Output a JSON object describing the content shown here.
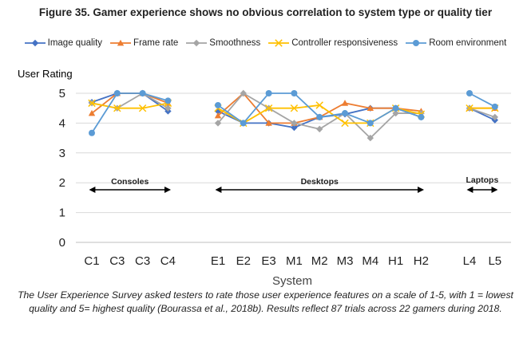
{
  "chart_data": {
    "type": "line",
    "title": "Figure 35. Gamer experience shows no obvious correlation to system type or quality tier",
    "ylabel": "User Rating",
    "xlabel": "System",
    "ylim": [
      0,
      5
    ],
    "yticks": [
      0,
      1,
      2,
      3,
      4,
      5
    ],
    "groups": [
      {
        "name": "Consoles",
        "categories": [
          "C1",
          "C3",
          "C3",
          "C4"
        ]
      },
      {
        "name": "Desktops",
        "categories": [
          "E1",
          "E2",
          "E3",
          "M1",
          "M2",
          "M3",
          "M4",
          "H1",
          "H2"
        ]
      },
      {
        "name": "Laptops",
        "categories": [
          "L4",
          "L5"
        ]
      }
    ],
    "series": [
      {
        "name": "Image quality",
        "color": "#4472C4",
        "marker": "diamond",
        "values": [
          [
            4.7,
            5.0,
            5.0,
            4.4
          ],
          [
            4.4,
            4.0,
            4.0,
            3.85,
            4.2,
            4.3,
            4.5,
            4.5,
            4.2
          ],
          [
            4.5,
            4.1
          ]
        ]
      },
      {
        "name": "Frame rate",
        "color": "#ED7D31",
        "marker": "triangle",
        "values": [
          [
            4.33,
            5.0,
            5.0,
            4.67
          ],
          [
            4.25,
            5.0,
            4.0,
            4.0,
            4.2,
            4.67,
            4.5,
            4.5,
            4.4
          ],
          [
            4.5,
            4.5
          ]
        ]
      },
      {
        "name": "Smoothness",
        "color": "#A5A5A5",
        "marker": "diamond",
        "values": [
          [
            4.67,
            4.5,
            5.0,
            4.5
          ],
          [
            4.0,
            5.0,
            4.5,
            4.0,
            3.8,
            4.33,
            3.5,
            4.33,
            4.33
          ],
          [
            4.5,
            4.2
          ]
        ]
      },
      {
        "name": "Controller responsiveness",
        "color": "#FFC000",
        "marker": "x",
        "values": [
          [
            4.67,
            4.5,
            4.5,
            4.67
          ],
          [
            4.5,
            4.0,
            4.5,
            4.5,
            4.6,
            4.0,
            4.0,
            4.5,
            4.3
          ],
          [
            4.5,
            4.5
          ]
        ]
      },
      {
        "name": "Room environment",
        "color": "#5B9BD5",
        "marker": "circle",
        "values": [
          [
            3.67,
            5.0,
            5.0,
            4.75
          ],
          [
            4.6,
            4.0,
            5.0,
            5.0,
            4.2,
            4.33,
            4.0,
            4.5,
            4.2
          ],
          [
            5.0,
            4.55
          ]
        ]
      }
    ]
  },
  "caption": "The User Experience Survey asked testers to rate those user experience features on a scale of 1-5, with 1 = lowest quality and 5= highest quality (Bourassa et al., 2018b). Results reflect 87 trials across 22 gamers during 2018."
}
